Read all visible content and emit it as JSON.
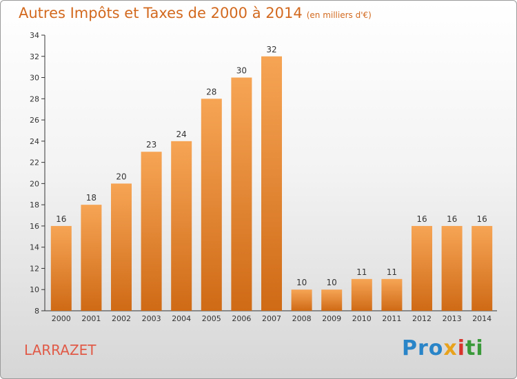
{
  "title": "Autres Impôts et Taxes de 2000 à 2014",
  "subtitle": "(en milliers d'€)",
  "commune": "LARRAZET",
  "logo": "Proxiti",
  "colors": {
    "bar_light": "#f6a555",
    "bar_dark": "#cf6a16",
    "title": "#d2691e",
    "commune": "#e05a47"
  },
  "chart_data": {
    "type": "bar",
    "title": "Autres Impôts et Taxes de 2000 à 2014",
    "subtitle": "(en milliers d'€)",
    "categories": [
      "2000",
      "2001",
      "2002",
      "2003",
      "2004",
      "2005",
      "2006",
      "2007",
      "2008",
      "2009",
      "2010",
      "2011",
      "2012",
      "2013",
      "2014"
    ],
    "values": [
      16,
      18,
      20,
      23,
      24,
      28,
      30,
      32,
      10,
      10,
      11,
      11,
      16,
      16,
      16
    ],
    "ylim": [
      8,
      34
    ],
    "yticks": [
      8,
      10,
      12,
      14,
      16,
      18,
      20,
      22,
      24,
      26,
      28,
      30,
      32,
      34
    ],
    "xlabel": "",
    "ylabel": "",
    "grid": false,
    "legend": "none"
  }
}
